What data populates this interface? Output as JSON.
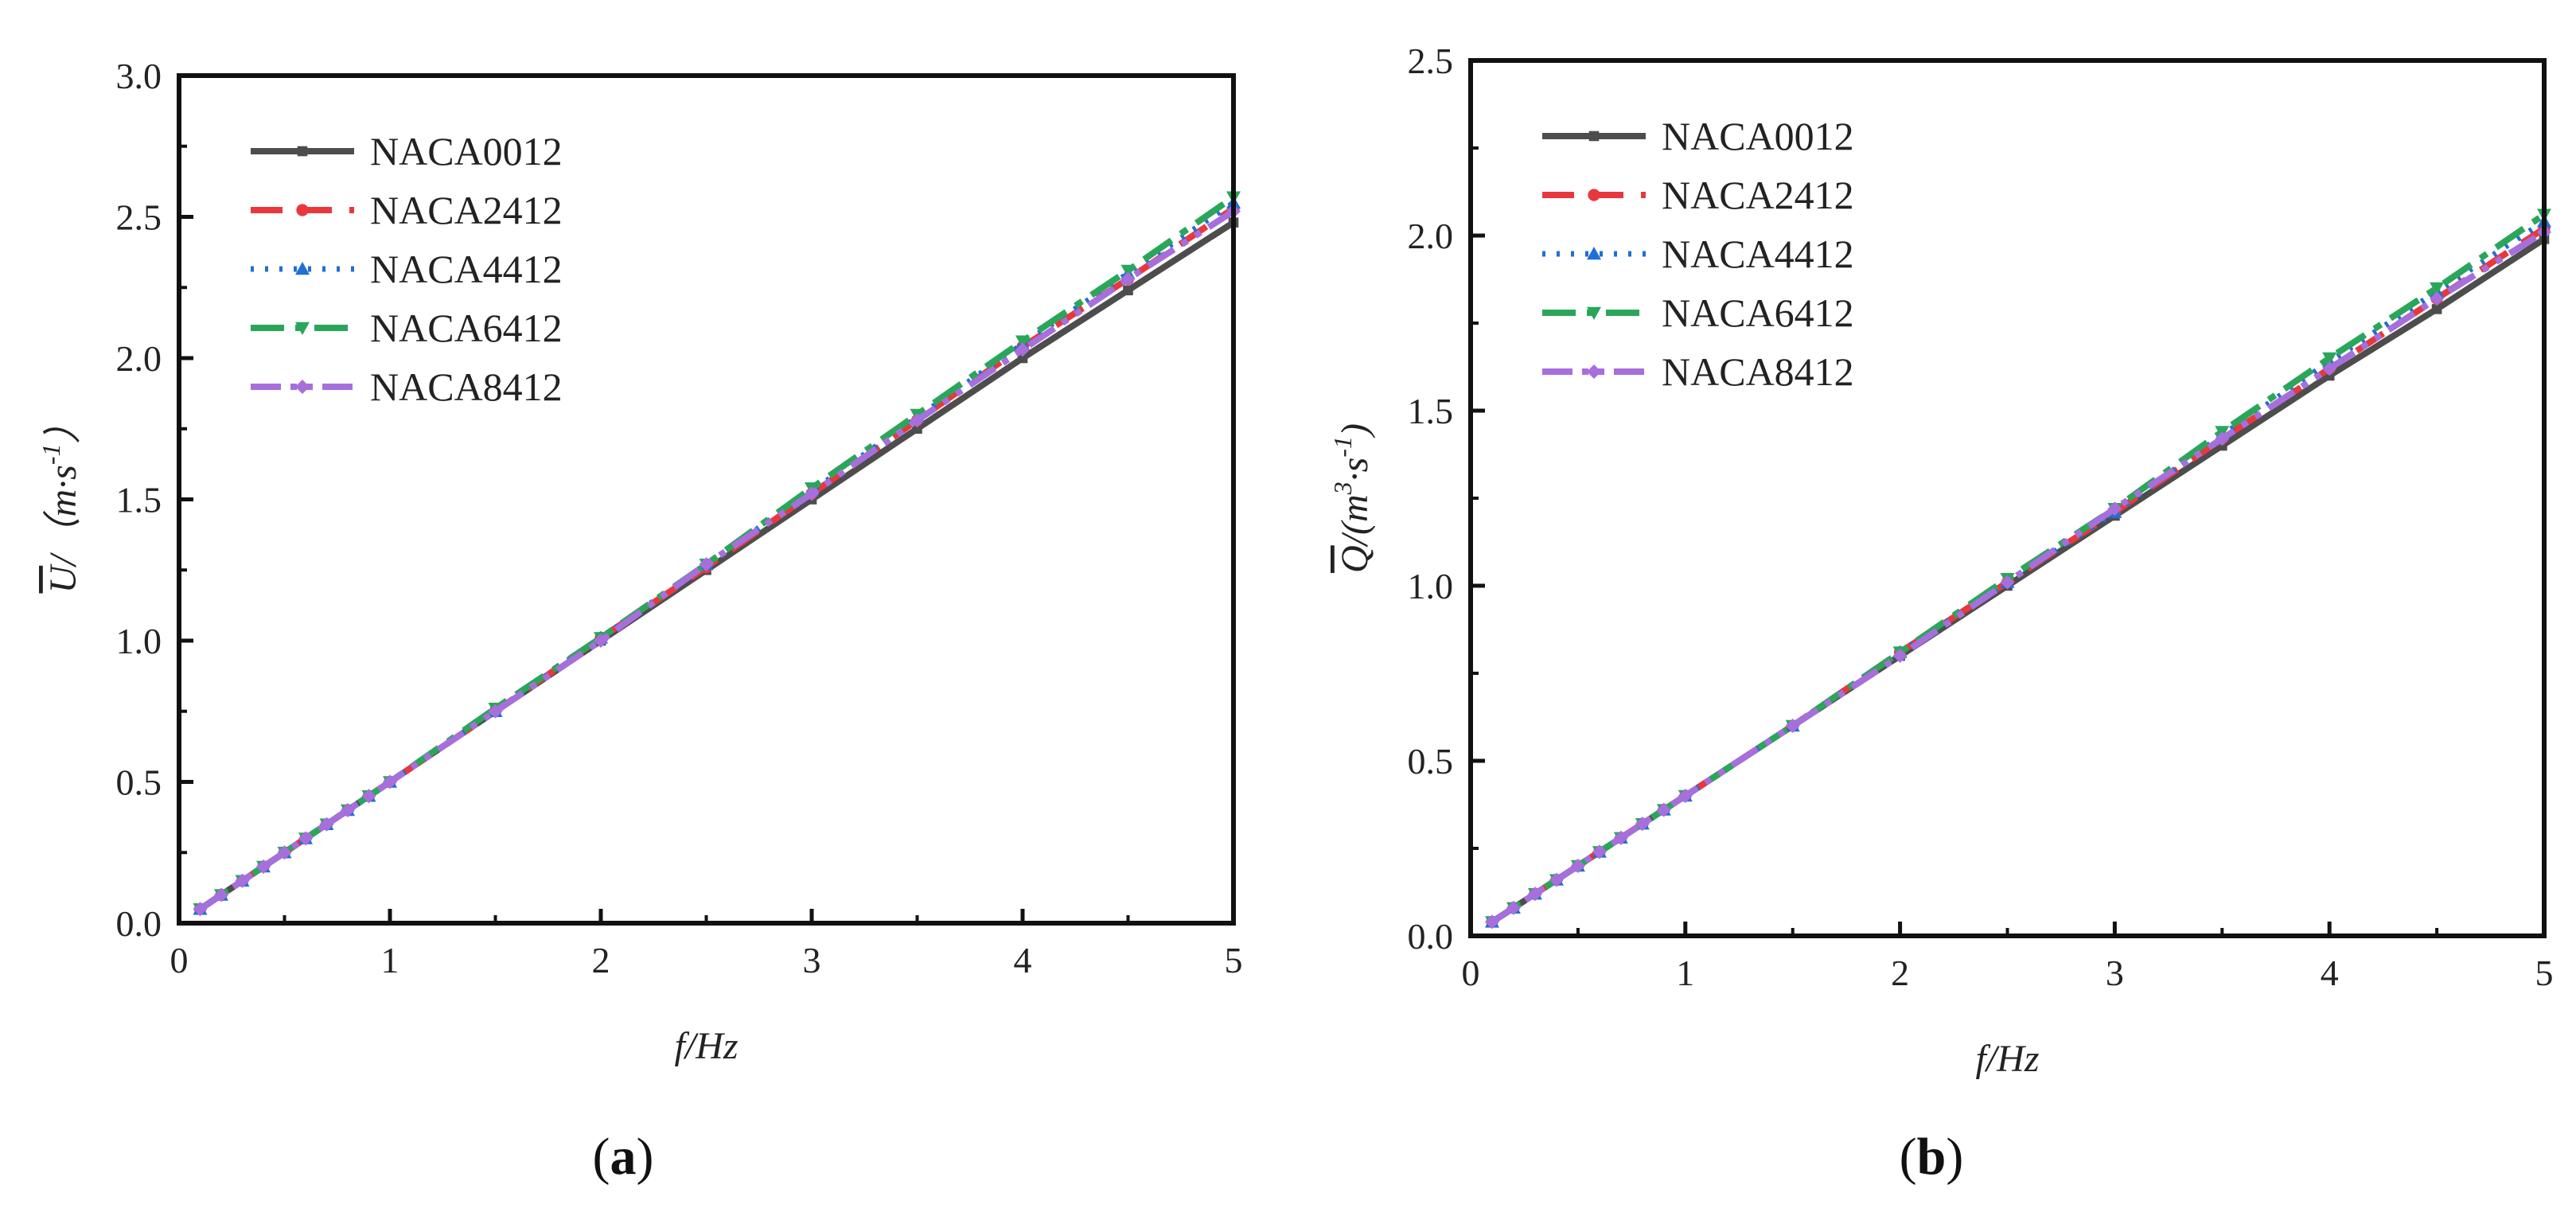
{
  "colors": {
    "NACA0012": "#4d4d4d",
    "NACA2412": "#e8383d",
    "NACA4412": "#1f6fd6",
    "NACA6412": "#2aa65a",
    "NACA8412": "#a66fdc"
  },
  "chart_data": [
    {
      "panel_label": "(a)",
      "type": "line",
      "xlabel": "f/Hz",
      "ylabel_main": "U",
      "ylabel_rest": "/（m·s",
      "ylabel_sup": "-1",
      "ylabel_close": "）",
      "xlim": [
        0,
        5
      ],
      "ylim": [
        0,
        3.0
      ],
      "x_ticks": [
        "0",
        "1",
        "2",
        "3",
        "4",
        "5"
      ],
      "y_ticks": [
        "0.0",
        "0.5",
        "1.0",
        "1.5",
        "2.0",
        "2.5",
        "3.0"
      ],
      "legend_position": "top-left",
      "x": [
        0.1,
        0.2,
        0.3,
        0.4,
        0.5,
        0.6,
        0.7,
        0.8,
        0.9,
        1.0,
        1.5,
        2.0,
        2.5,
        3.0,
        3.5,
        4.0,
        4.5,
        5.0
      ],
      "series": [
        {
          "name": "NACA0012",
          "values": [
            0.05,
            0.1,
            0.15,
            0.2,
            0.25,
            0.3,
            0.35,
            0.4,
            0.45,
            0.5,
            0.75,
            1.0,
            1.25,
            1.5,
            1.75,
            2.0,
            2.24,
            2.48
          ]
        },
        {
          "name": "NACA2412",
          "values": [
            0.05,
            0.1,
            0.15,
            0.2,
            0.25,
            0.3,
            0.35,
            0.4,
            0.45,
            0.5,
            0.75,
            1.01,
            1.26,
            1.52,
            1.78,
            2.04,
            2.28,
            2.53
          ]
        },
        {
          "name": "NACA4412",
          "values": [
            0.05,
            0.1,
            0.15,
            0.2,
            0.25,
            0.3,
            0.35,
            0.4,
            0.45,
            0.5,
            0.75,
            1.01,
            1.27,
            1.53,
            1.79,
            2.05,
            2.3,
            2.55
          ]
        },
        {
          "name": "NACA6412",
          "values": [
            0.05,
            0.1,
            0.15,
            0.2,
            0.25,
            0.3,
            0.35,
            0.4,
            0.45,
            0.5,
            0.76,
            1.01,
            1.27,
            1.54,
            1.8,
            2.06,
            2.31,
            2.57
          ]
        },
        {
          "name": "NACA8412",
          "values": [
            0.05,
            0.1,
            0.15,
            0.2,
            0.25,
            0.3,
            0.35,
            0.4,
            0.45,
            0.5,
            0.75,
            1.0,
            1.27,
            1.52,
            1.78,
            2.03,
            2.28,
            2.52
          ]
        }
      ]
    },
    {
      "panel_label": "(b)",
      "type": "line",
      "xlabel": "f/Hz",
      "ylabel_main": "Q",
      "ylabel_rest": "/(m",
      "ylabel_sup": "3",
      "ylabel_mid": "·s",
      "ylabel_sup2": "-1",
      "ylabel_close": ")",
      "xlim": [
        0,
        5
      ],
      "ylim": [
        0,
        2.5
      ],
      "x_ticks": [
        "0",
        "1",
        "2",
        "3",
        "4",
        "5"
      ],
      "y_ticks": [
        "0.0",
        "0.5",
        "1.0",
        "1.5",
        "2.0",
        "2.5"
      ],
      "legend_position": "top-left",
      "x": [
        0.1,
        0.2,
        0.3,
        0.4,
        0.5,
        0.6,
        0.7,
        0.8,
        0.9,
        1.0,
        1.5,
        2.0,
        2.5,
        3.0,
        3.5,
        4.0,
        4.5,
        5.0
      ],
      "series": [
        {
          "name": "NACA0012",
          "values": [
            0.04,
            0.08,
            0.12,
            0.16,
            0.2,
            0.24,
            0.28,
            0.32,
            0.36,
            0.4,
            0.6,
            0.8,
            1.0,
            1.2,
            1.4,
            1.6,
            1.79,
            1.99
          ]
        },
        {
          "name": "NACA2412",
          "values": [
            0.04,
            0.08,
            0.12,
            0.16,
            0.2,
            0.24,
            0.28,
            0.32,
            0.36,
            0.4,
            0.6,
            0.81,
            1.01,
            1.21,
            1.42,
            1.62,
            1.82,
            2.02
          ]
        },
        {
          "name": "NACA4412",
          "values": [
            0.04,
            0.08,
            0.12,
            0.16,
            0.2,
            0.24,
            0.28,
            0.32,
            0.36,
            0.4,
            0.6,
            0.81,
            1.01,
            1.21,
            1.43,
            1.64,
            1.84,
            2.04
          ]
        },
        {
          "name": "NACA6412",
          "values": [
            0.04,
            0.08,
            0.12,
            0.16,
            0.2,
            0.24,
            0.28,
            0.32,
            0.36,
            0.4,
            0.6,
            0.81,
            1.02,
            1.22,
            1.44,
            1.65,
            1.85,
            2.06
          ]
        },
        {
          "name": "NACA8412",
          "values": [
            0.04,
            0.08,
            0.12,
            0.16,
            0.2,
            0.24,
            0.28,
            0.32,
            0.36,
            0.4,
            0.6,
            0.8,
            1.01,
            1.22,
            1.42,
            1.62,
            1.82,
            2.01
          ]
        }
      ]
    }
  ]
}
